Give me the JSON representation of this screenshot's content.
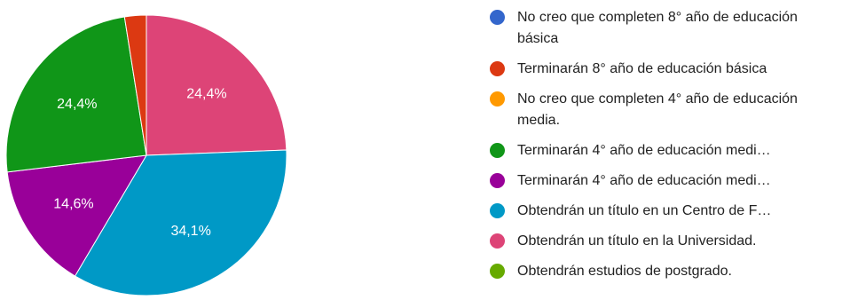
{
  "chart_data": {
    "type": "pie",
    "slices": [
      {
        "label": "No creo que completen 8° año de educación básica",
        "value": 0.0,
        "display": "",
        "color": "#3366cc",
        "truncate": false
      },
      {
        "label": "Terminarán 8° año de educación básica",
        "value": 2.5,
        "display": "",
        "color": "#dc3912",
        "truncate": false
      },
      {
        "label": "No creo que completen 4° año de educación media.",
        "value": 0.0,
        "display": "",
        "color": "#ff9900",
        "truncate": false
      },
      {
        "label": "Terminarán 4° año de educación medi…",
        "value": 24.4,
        "display": "24,4%",
        "color": "#109618",
        "truncate": true
      },
      {
        "label": "Terminarán 4° año de educación medi…",
        "value": 14.6,
        "display": "14,6%",
        "color": "#990099",
        "truncate": true
      },
      {
        "label": "Obtendrán un título en un Centro de F…",
        "value": 34.1,
        "display": "34,1%",
        "color": "#0099c6",
        "truncate": true
      },
      {
        "label": "Obtendrán un título en la Universidad.",
        "value": 24.4,
        "display": "24,4%",
        "color": "#dd4477",
        "truncate": false
      },
      {
        "label": "Obtendrán estudios de postgrado.",
        "value": 0.0,
        "display": "",
        "color": "#66aa00",
        "truncate": false
      }
    ],
    "legend_position": "right"
  }
}
